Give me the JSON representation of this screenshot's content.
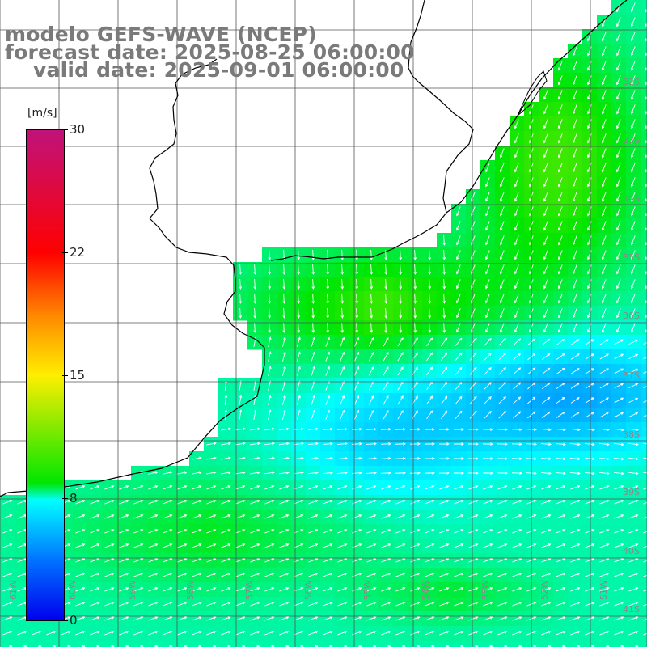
{
  "header": {
    "model": "modelo GEFS-WAVE (NCEP)",
    "forecast": "forecast date: 2025-08-25 06:00:00",
    "valid": "valid date: 2025-09-01 06:00:00"
  },
  "colorbar": {
    "unit": "[m/s]",
    "ticks": [
      "30",
      "22",
      "15",
      "8",
      "0"
    ],
    "colors": [
      "#c0127a",
      "#ff0000",
      "#ff8a00",
      "#ffee00",
      "#00e600",
      "#00ffff",
      "#0070ff",
      "#0000ee"
    ]
  },
  "axes": {
    "lat_labels": [
      "32S",
      "33S",
      "34S",
      "35S",
      "36S",
      "37S",
      "38S",
      "39S",
      "40S",
      "41S"
    ],
    "lon_labels": [
      "61W",
      "60W",
      "59W",
      "58W",
      "57W",
      "56W",
      "55W",
      "54W",
      "53W",
      "52W",
      "51W"
    ]
  },
  "map": {
    "variable": "wind speed",
    "field_colors": {
      "land": "#ffffff",
      "coastline": "#000000",
      "grid": "#555555",
      "arrows": "#ffffff"
    }
  }
}
